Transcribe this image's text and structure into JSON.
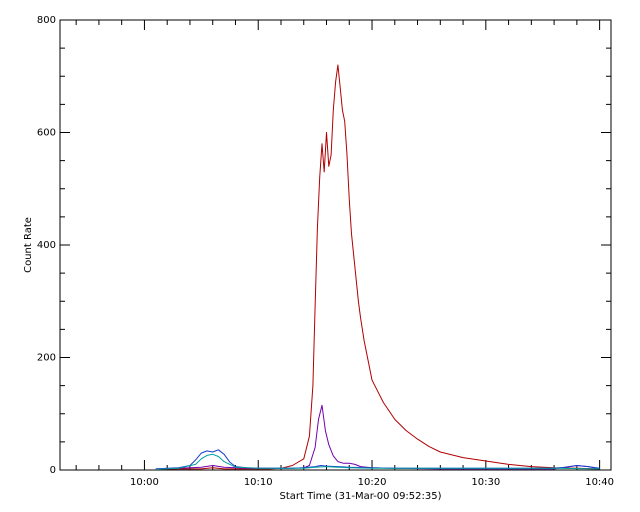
{
  "chart_data": {
    "type": "line",
    "title": "",
    "xlabel": "Start Time (31-Mar-00 09:52:35)",
    "ylabel": "Count Rate",
    "x_unit": "minutes",
    "x_tick_labels": [
      {
        "value": "10:00",
        "minute": 600
      },
      {
        "value": "10:10",
        "minute": 610
      },
      {
        "value": "10:20",
        "minute": 620
      },
      {
        "value": "10:30",
        "minute": 630
      },
      {
        "value": "10:40",
        "minute": 640
      }
    ],
    "xlim": [
      592.58,
      641.0
    ],
    "ylim": [
      0,
      800
    ],
    "y_ticks": [
      "0",
      "200",
      "400",
      "600",
      "800"
    ],
    "grid": false,
    "colors": {
      "red": "#b00000",
      "purple": "#7000b0",
      "blue": "#1a3ccc",
      "teal": "#00a0a0",
      "axes": "#000000"
    },
    "series": [
      {
        "color": "#b00000",
        "x": [
          601.0,
          603.0,
          605.0,
          606.0,
          607.0,
          609.0,
          611.0,
          612.0,
          613.0,
          614.0,
          614.5,
          614.8,
          615.0,
          615.2,
          615.4,
          615.6,
          615.8,
          616.0,
          616.2,
          616.4,
          616.6,
          616.8,
          617.0,
          617.2,
          617.4,
          617.6,
          617.8,
          618.0,
          618.2,
          618.4,
          618.6,
          618.8,
          619.0,
          619.3,
          619.6,
          620.0,
          620.5,
          621.0,
          621.5,
          622.0,
          623.0,
          624.0,
          625.0,
          626.0,
          628.0,
          630.0,
          632.0,
          634.0,
          636.0,
          638.0,
          640.0
        ],
        "y": [
          1,
          2,
          2,
          4,
          2,
          2,
          2,
          3,
          8,
          20,
          60,
          150,
          290,
          430,
          520,
          580,
          530,
          600,
          540,
          560,
          640,
          690,
          720,
          680,
          640,
          620,
          560,
          480,
          420,
          380,
          340,
          300,
          270,
          230,
          200,
          160,
          140,
          120,
          105,
          90,
          70,
          55,
          42,
          32,
          22,
          16,
          10,
          6,
          4,
          3,
          2
        ]
      },
      {
        "color": "#7000b0",
        "x": [
          601.0,
          603.0,
          605.0,
          606.0,
          607.0,
          609.0,
          613.0,
          614.0,
          614.5,
          615.0,
          615.3,
          615.6,
          615.9,
          616.2,
          616.6,
          617.0,
          617.5,
          618.0,
          618.5,
          619.0,
          620.0,
          622.0,
          626.0,
          630.0,
          636.0,
          638.0,
          639.0,
          640.0
        ],
        "y": [
          2,
          3,
          5,
          8,
          5,
          3,
          3,
          4,
          8,
          40,
          90,
          115,
          70,
          45,
          25,
          15,
          12,
          12,
          10,
          6,
          4,
          3,
          2,
          2,
          2,
          8,
          6,
          2
        ]
      },
      {
        "color": "#1a3ccc",
        "x": [
          601.0,
          602.0,
          603.0,
          604.0,
          604.5,
          605.0,
          605.5,
          606.0,
          606.5,
          607.0,
          607.5,
          608.0,
          609.0,
          611.0,
          613.0,
          614.0,
          615.0,
          615.5,
          616.0,
          617.0,
          618.0,
          620.0,
          622.0,
          626.0,
          630.0,
          634.0,
          636.0,
          637.0,
          638.0,
          639.0,
          640.0
        ],
        "y": [
          2,
          3,
          4,
          8,
          18,
          30,
          34,
          32,
          36,
          28,
          14,
          6,
          4,
          3,
          3,
          4,
          6,
          8,
          7,
          6,
          5,
          4,
          3,
          3,
          3,
          3,
          3,
          5,
          8,
          6,
          3
        ]
      },
      {
        "color": "#00a0a0",
        "x": [
          601.0,
          603.0,
          604.5,
          605.0,
          605.5,
          606.0,
          606.5,
          607.0,
          608.0,
          610.0,
          614.0,
          615.0,
          616.0,
          617.0,
          618.0,
          620.0,
          624.0,
          630.0,
          636.0,
          640.0
        ],
        "y": [
          1,
          3,
          10,
          20,
          26,
          28,
          24,
          15,
          5,
          3,
          3,
          5,
          6,
          5,
          4,
          3,
          3,
          3,
          3,
          2
        ]
      }
    ]
  }
}
